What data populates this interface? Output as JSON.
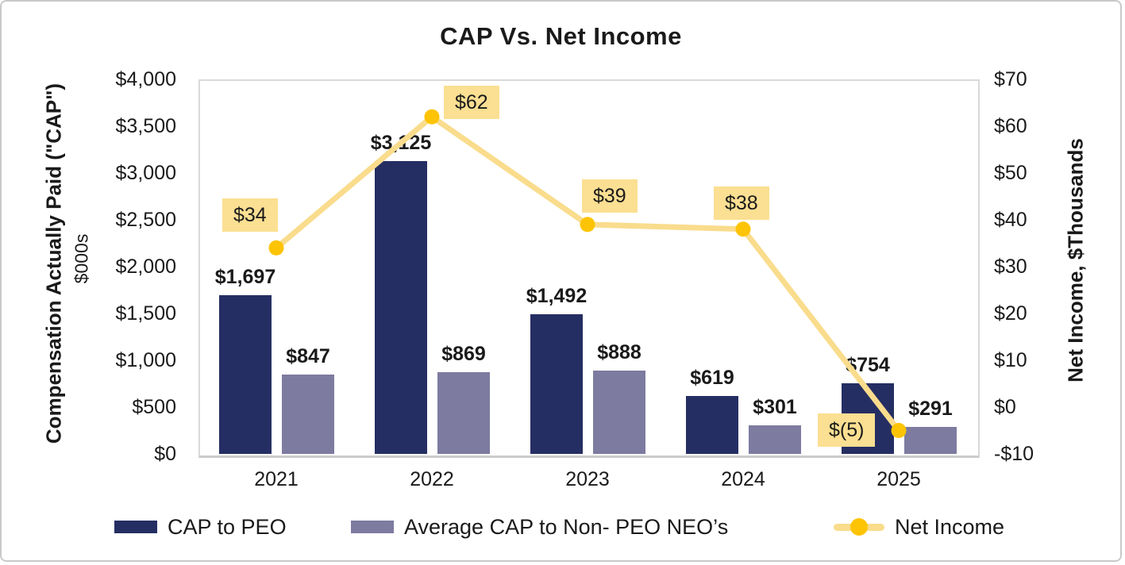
{
  "title": "CAP Vs. Net Income",
  "chart_data": {
    "type": "combo-bar-line",
    "title": "CAP Vs. Net Income",
    "categories": [
      "2021",
      "2022",
      "2023",
      "2024",
      "2025"
    ],
    "series": [
      {
        "name": "CAP to PEO",
        "type": "bar",
        "axis": "left",
        "color": "#252e63",
        "values": [
          1697,
          3125,
          1492,
          619,
          754
        ],
        "labels": [
          "$1,697",
          "$3,125",
          "$1,492",
          "$619",
          "$754"
        ]
      },
      {
        "name": "Average CAP to Non- PEO NEO’s",
        "type": "bar",
        "axis": "left",
        "color": "#7d7ba0",
        "values": [
          847,
          869,
          888,
          301,
          291
        ],
        "labels": [
          "$847",
          "$869",
          "$888",
          "$301",
          "$291"
        ]
      },
      {
        "name": "Net Income",
        "type": "line",
        "axis": "right",
        "color": "#f9dc8c",
        "marker_color": "#fdc405",
        "label_background": "#fbdf92",
        "values": [
          34,
          62,
          39,
          38,
          -5
        ],
        "labels": [
          "$34",
          "$62",
          "$39",
          "$38",
          "$(5)"
        ],
        "label_offsets": [
          [
            -68,
            -62
          ],
          [
            15,
            -39
          ],
          [
            -7,
            -57
          ],
          [
            -37,
            -54
          ],
          [
            -102,
            -22
          ]
        ]
      }
    ],
    "left_axis": {
      "title": "Compensation Actually Paid (\"CAP\")",
      "subtitle": "$000s",
      "min": 0,
      "max": 4000,
      "step": 500,
      "tick_labels": [
        "$4,000",
        "$3,500",
        "$3,000",
        "$2,500",
        "$2,000",
        "$1,500",
        "$1,000",
        "$500",
        "$0"
      ]
    },
    "right_axis": {
      "title": "Net Income, $Thousands",
      "min": -10,
      "max": 70,
      "step": 10,
      "tick_labels": [
        "$70",
        "$60",
        "$50",
        "$40",
        "$30",
        "$20",
        "$10",
        "$0",
        "-$10"
      ]
    },
    "grid": false,
    "legend_position": "bottom",
    "colors": {
      "text": "#1a1a1a",
      "plot_border": "#d9d9d9",
      "frame_border": "#c9c9c9"
    }
  }
}
